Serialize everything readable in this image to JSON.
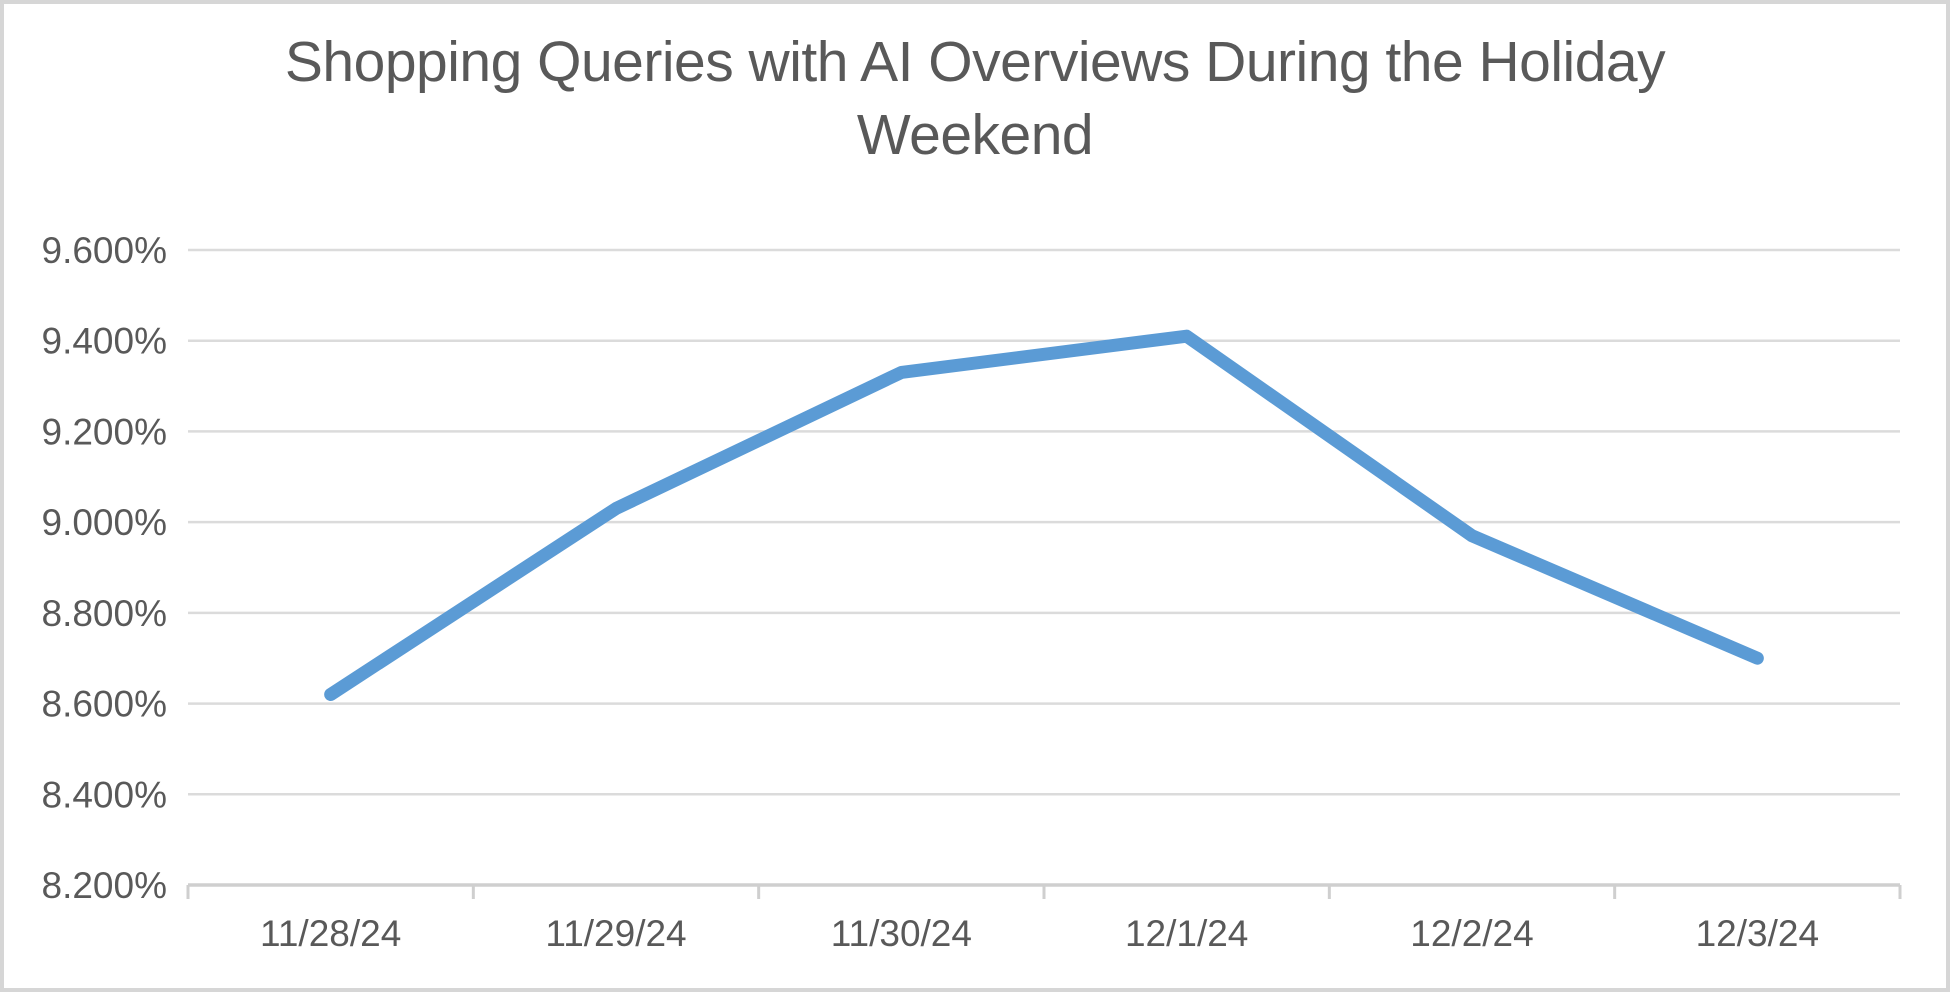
{
  "chart_data": {
    "type": "line",
    "title": "Shopping Queries with AI Overviews During the Holiday Weekend",
    "categories": [
      "11/28/24",
      "11/29/24",
      "11/30/24",
      "12/1/24",
      "12/2/24",
      "12/3/24"
    ],
    "values": [
      8.62,
      9.03,
      9.33,
      9.41,
      8.97,
      8.7
    ],
    "unit": "%",
    "xlabel": "",
    "ylabel": "",
    "ylim": [
      8.2,
      9.6
    ],
    "ytick_step": 0.2,
    "ytick_labels": [
      "9.600%",
      "9.400%",
      "9.200%",
      "9.000%",
      "8.800%",
      "8.600%",
      "8.400%",
      "8.200%"
    ],
    "grid": true,
    "legend": "none",
    "colors": {
      "line": "#5B9BD5",
      "grid": "#DBDBDB",
      "axis": "#CFCFCF",
      "text": "#595959",
      "title": "#595959",
      "frame_border": "#D6D6D6",
      "background": "#FFFFFF"
    }
  }
}
